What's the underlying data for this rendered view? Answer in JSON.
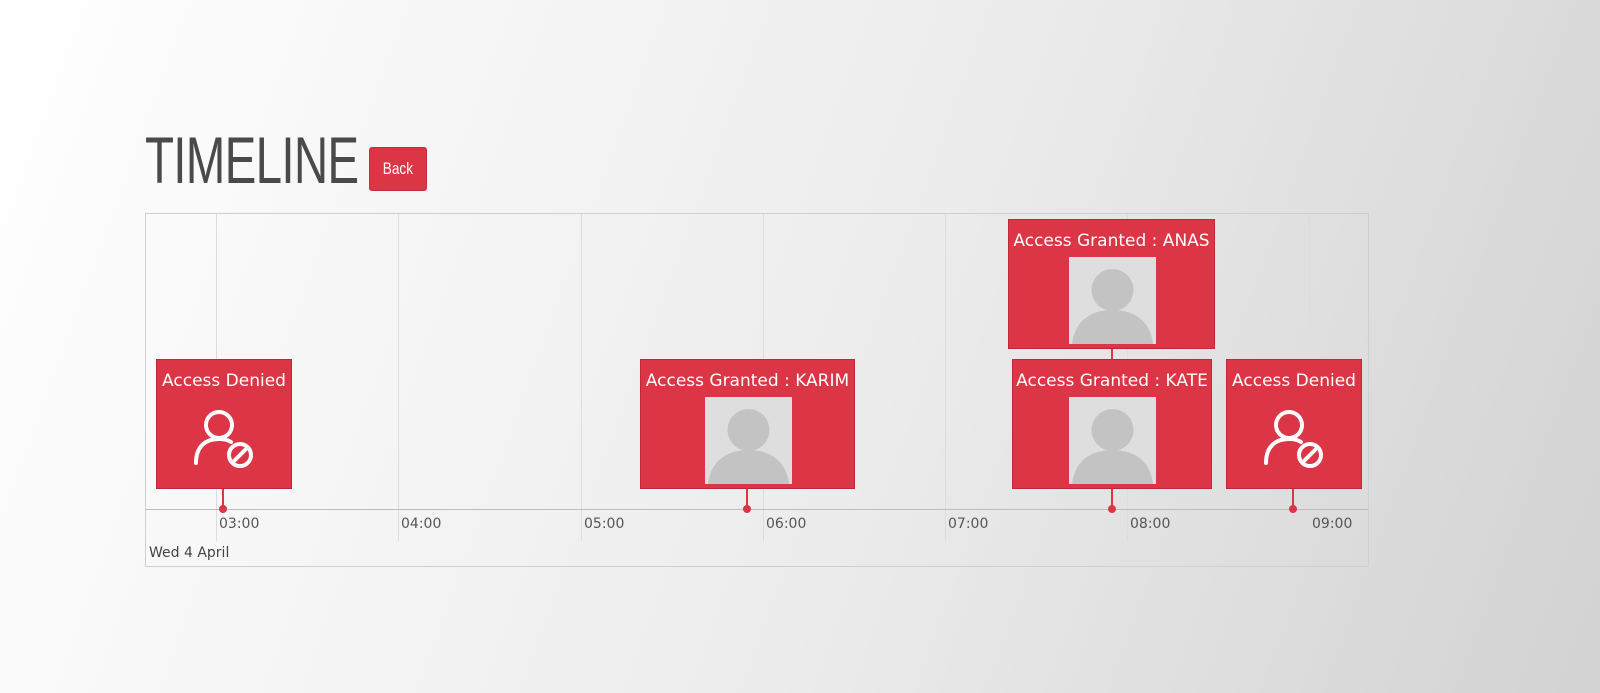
{
  "header": {
    "title": "TIMELINE",
    "back_label": "Back"
  },
  "timeline": {
    "date_label": "Wed 4 April",
    "ticks": [
      "03:00",
      "04:00",
      "05:00",
      "06:00",
      "07:00",
      "08:00",
      "09:00"
    ],
    "events": [
      {
        "title": "Access Denied",
        "icon": "user-blocked-icon"
      },
      {
        "title": "Access Granted : KARIM",
        "icon": "avatar-placeholder"
      },
      {
        "title": "Access Granted : ANAS",
        "icon": "avatar-placeholder"
      },
      {
        "title": "Access Granted : KATE",
        "icon": "avatar-placeholder"
      },
      {
        "title": "Access Denied",
        "icon": "user-blocked-icon"
      }
    ]
  },
  "colors": {
    "accent": "#dc3545",
    "title": "#4a4a4a",
    "avatar_bg": "#dedede",
    "avatar_fg": "#c3c3c3"
  }
}
